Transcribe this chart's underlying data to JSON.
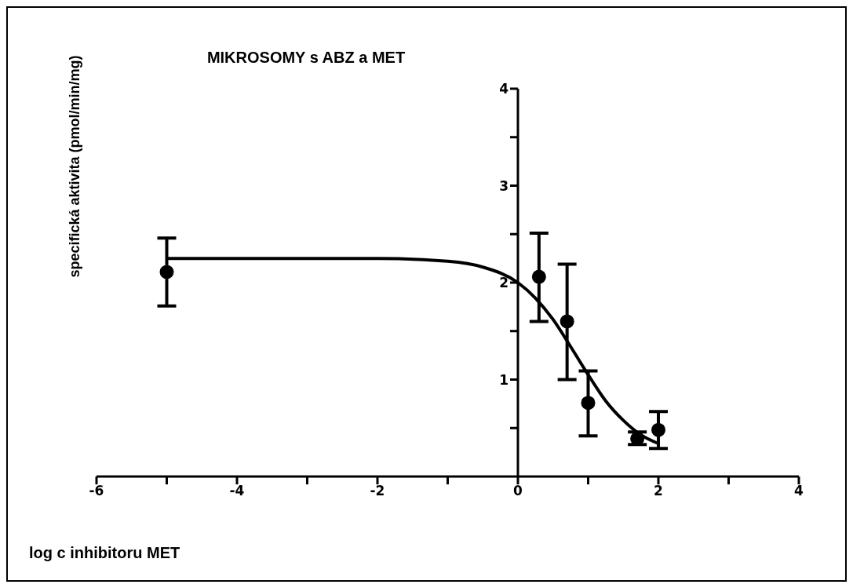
{
  "chart_data": {
    "type": "scatter",
    "title": "MIKROSOMY s ABZ a MET",
    "xlabel": "log c inhibitoru MET",
    "ylabel": "specifická aktivita (pmol/min/mg)",
    "xlim": [
      -6,
      4
    ],
    "xticks": [
      -6,
      {
        "value": -5,
        "label": null
      },
      -4,
      {
        "value": -3,
        "label": null
      },
      -2,
      {
        "value": -1,
        "label": null
      },
      0,
      {
        "value": 1,
        "label": null
      },
      2,
      {
        "value": 3,
        "label": null
      },
      4
    ],
    "ylim": [
      0,
      4
    ],
    "yticks": [
      {
        "value": 0.5,
        "label": null
      },
      1,
      {
        "value": 1.5,
        "label": null
      },
      2,
      {
        "value": 2.5,
        "label": null
      },
      3,
      {
        "value": 3.5,
        "label": null
      },
      4
    ],
    "marker": "circle",
    "series": [
      {
        "color": "#000000",
        "x": [
          -5,
          0.3,
          0.7,
          1,
          1.7,
          2
        ],
        "values": [
          2.11,
          2.06,
          1.6,
          0.76,
          0.39,
          0.48
        ],
        "errors": [
          [
            1.76,
            2.46
          ],
          [
            1.6,
            2.51
          ],
          [
            1.0,
            2.19
          ],
          [
            0.42,
            1.09
          ],
          [
            0.33,
            0.46
          ],
          [
            0.29,
            0.67
          ]
        ]
      },
      {
        "type": "line",
        "marker": "none",
        "color": "#000000",
        "x": [
          -5,
          -4,
          -3,
          -2,
          -1,
          -0.5,
          0,
          0.25,
          0.5,
          0.75,
          1,
          1.25,
          1.5,
          1.75,
          2
        ],
        "values": [
          2.25,
          2.25,
          2.25,
          2.25,
          2.22,
          2.16,
          2.0,
          1.84,
          1.62,
          1.34,
          1.05,
          0.78,
          0.58,
          0.43,
          0.34
        ]
      }
    ]
  }
}
